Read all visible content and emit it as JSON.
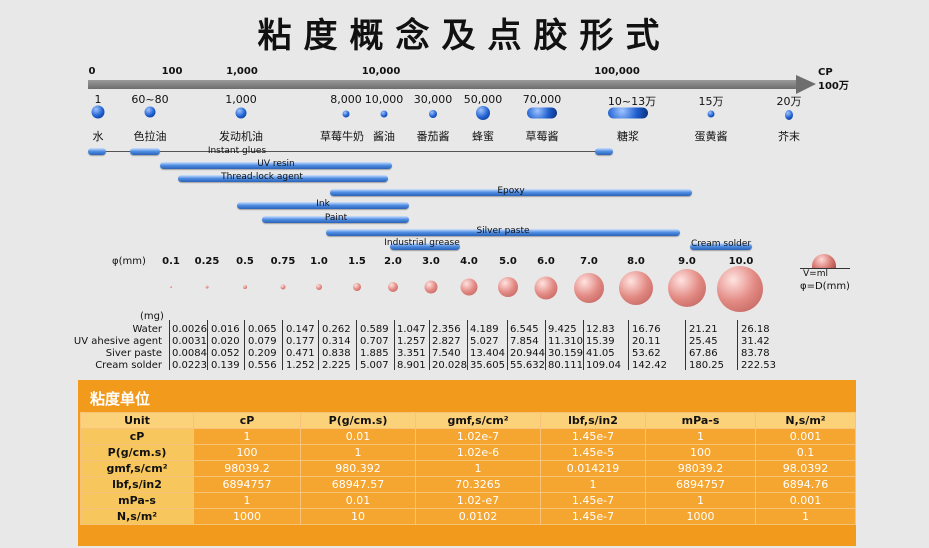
{
  "title": "粘度概念及点胶形式",
  "scale": {
    "ticks": [
      "0",
      "100",
      "1,000",
      "10,000",
      "100,000"
    ],
    "unit_top": "CP",
    "unit_bottom": "100万",
    "values": [
      "1",
      "60~80",
      "1,000",
      "8,000",
      "10,000",
      "30,000",
      "50,000",
      "70,000",
      "10~13万",
      "15万",
      "20万"
    ],
    "liquids": [
      "水",
      "色拉油",
      "发动机油",
      "草莓牛奶",
      "酱油",
      "番茄酱",
      "蜂蜜",
      "草莓酱",
      "糖浆",
      "蛋黄酱",
      "芥末"
    ]
  },
  "bars": {
    "instant_glues": "Instant  glues",
    "uv_resin": "UV resin",
    "thread_lock": "Thread-lock agent",
    "epoxy": "Epoxy",
    "ink": "Ink",
    "paint": "Paint",
    "silver_paste": "Silver paste",
    "industrial_grease": "Industrial grease",
    "cream_solder": "Cream solder"
  },
  "diameter": {
    "header": "φ(mm)",
    "values": [
      "0.1",
      "0.25",
      "0.5",
      "0.75",
      "1.0",
      "1.5",
      "2.0",
      "3.0",
      "4.0",
      "5.0",
      "6.0",
      "7.0",
      "8.0",
      "9.0",
      "10.0"
    ],
    "legend_volume": "V=ml",
    "legend_diameter": "φ=D(mm)"
  },
  "mass": {
    "unit": "(mg)",
    "rows": [
      {
        "label": "Water",
        "values": [
          "0.0026",
          "0.016",
          "0.065",
          "0.147",
          "0.262",
          "0.589",
          "1.047",
          "2.356",
          "4.189",
          "6.545",
          "9.425",
          "12.83",
          "16.76",
          "21.21",
          "26.18"
        ]
      },
      {
        "label": "UV ahesive agent",
        "values": [
          "0.0031",
          "0.020",
          "0.079",
          "0.177",
          "0.314",
          "0.707",
          "1.257",
          "2.827",
          "5.027",
          "7.854",
          "11.310",
          "15.39",
          "20.11",
          "25.45",
          "31.42"
        ]
      },
      {
        "label": "Siver paste",
        "values": [
          "0.0084",
          "0.052",
          "0.209",
          "0.471",
          "0.838",
          "1.885",
          "3.351",
          "7.540",
          "13.404",
          "20.944",
          "30.159",
          "41.05",
          "53.62",
          "67.86",
          "83.78"
        ]
      },
      {
        "label": "Cream solder",
        "values": [
          "0.0223",
          "0.139",
          "0.556",
          "1.252",
          "2.225",
          "5.007",
          "8.901",
          "20.028",
          "35.605",
          "55.632",
          "80.111",
          "109.04",
          "142.42",
          "180.25",
          "222.53"
        ]
      }
    ]
  },
  "units": {
    "title": "粘度单位",
    "headers": [
      "Unit",
      "cP",
      "P(g/cm.s)",
      "gmf,s/cm²",
      "lbf,s/in2",
      "mPa-s",
      "N,s/m²"
    ],
    "rows": [
      [
        "cP",
        "1",
        "0.01",
        "1.02e-7",
        "1.45e-7",
        "1",
        "0.001"
      ],
      [
        "P(g/cm.s)",
        "100",
        "1",
        "1.02e-6",
        "1.45e-5",
        "100",
        "0.1"
      ],
      [
        "gmf,s/cm²",
        "98039.2",
        "980.392",
        "1",
        "0.014219",
        "98039.2",
        "98.0392"
      ],
      [
        "lbf,s/in2",
        "6894757",
        "68947.57",
        "70.3265",
        "1",
        "6894757",
        "6894.76"
      ],
      [
        "mPa-s",
        "1",
        "0.01",
        "1.02-e7",
        "1.45e-7",
        "1",
        "0.001"
      ],
      [
        "N,s/m²",
        "1000",
        "10",
        "0.0102",
        "1.45e-7",
        "1000",
        "1"
      ]
    ]
  }
}
